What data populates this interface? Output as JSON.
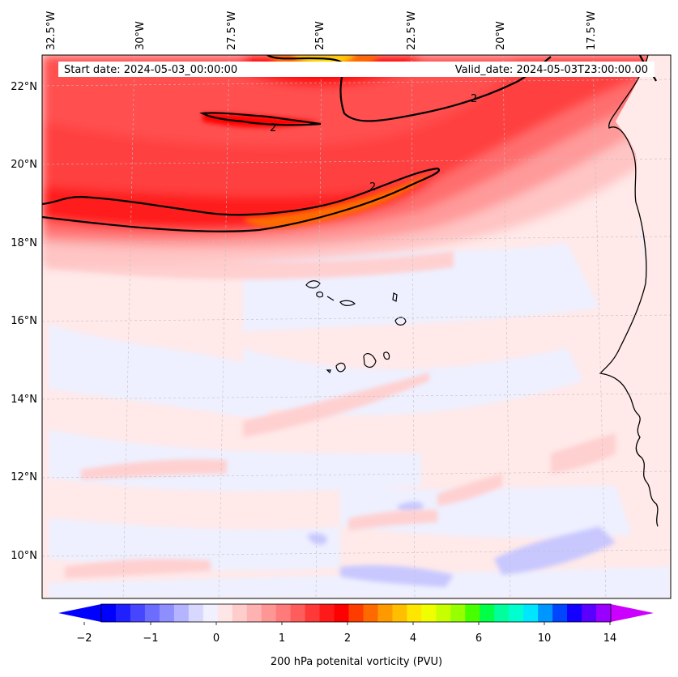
{
  "header": {
    "start_date": "Start date: 2024-05-03_00:00:00",
    "valid_date": "Valid_date: 2024-05-03T23:00:00.00"
  },
  "map": {
    "lon_labels": [
      "32.5°W",
      "30°W",
      "27.5°W",
      "25°W",
      "22.5°W",
      "20°W",
      "17.5°W"
    ],
    "lat_labels": [
      "22°N",
      "20°N",
      "18°N",
      "16°N",
      "14°N",
      "12°N",
      "10°N"
    ],
    "contour_labels": [
      "2",
      "2",
      "2"
    ]
  },
  "colorbar": {
    "ticks": [
      "−2",
      "−1",
      "0",
      "1",
      "2",
      "4",
      "6",
      "10",
      "14"
    ],
    "label": "200 hPa potenital vorticity (PVU)",
    "colors": [
      "#0000ff",
      "#2020ff",
      "#4646ff",
      "#6c6cff",
      "#8e8eff",
      "#b4b4ff",
      "#d8d8ff",
      "#f0f0ff",
      "#ffe6e6",
      "#ffcccc",
      "#ffb2b2",
      "#ff9696",
      "#ff7a7a",
      "#ff5c5c",
      "#ff3838",
      "#ff1a1a",
      "#ff0000",
      "#ff3c00",
      "#ff6a00",
      "#ff9900",
      "#ffbf00",
      "#ffe600",
      "#f0ff00",
      "#c8ff00",
      "#96ff00",
      "#46ff00",
      "#00ff46",
      "#00ff9c",
      "#00ffd0",
      "#00e6ff",
      "#0096ff",
      "#0046ff",
      "#1400ff",
      "#5a00ff",
      "#9900ff"
    ],
    "extend_low_color": "#0000ff",
    "extend_high_color": "#cc00ff"
  }
}
